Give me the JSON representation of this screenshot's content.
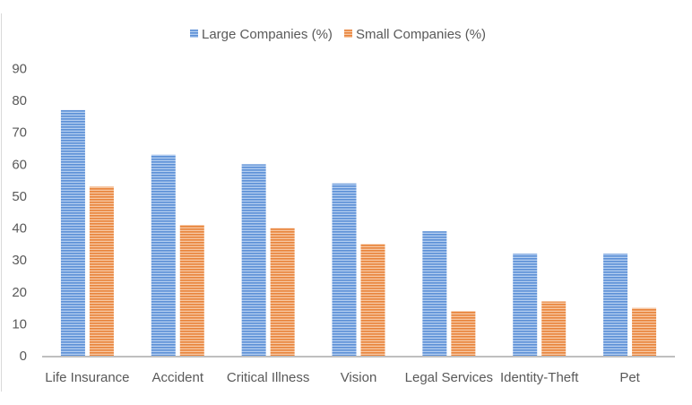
{
  "chart_data": {
    "type": "bar",
    "title": "",
    "xlabel": "",
    "ylabel": "",
    "categories": [
      "Life Insurance",
      "Accident",
      "Critical Illness",
      "Vision",
      "Legal Services",
      "Identity-Theft",
      "Pet"
    ],
    "series": [
      {
        "name": "Large Companies (%)",
        "color": "#5b8fd6",
        "color_light": "#b3cdf0",
        "values": [
          77,
          63,
          60,
          54,
          39,
          32,
          32
        ]
      },
      {
        "name": "Small Companies (%)",
        "color": "#e8833a",
        "color_light": "#f7c8a3",
        "values": [
          53,
          41,
          40,
          35,
          14,
          17,
          15
        ]
      }
    ],
    "ylim": [
      0,
      90
    ],
    "yticks": [
      0,
      10,
      20,
      30,
      40,
      50,
      60,
      70,
      80,
      90
    ],
    "grid": false,
    "legend_position": "top-center",
    "bar_fill_pattern": "horizontal-stripes"
  }
}
